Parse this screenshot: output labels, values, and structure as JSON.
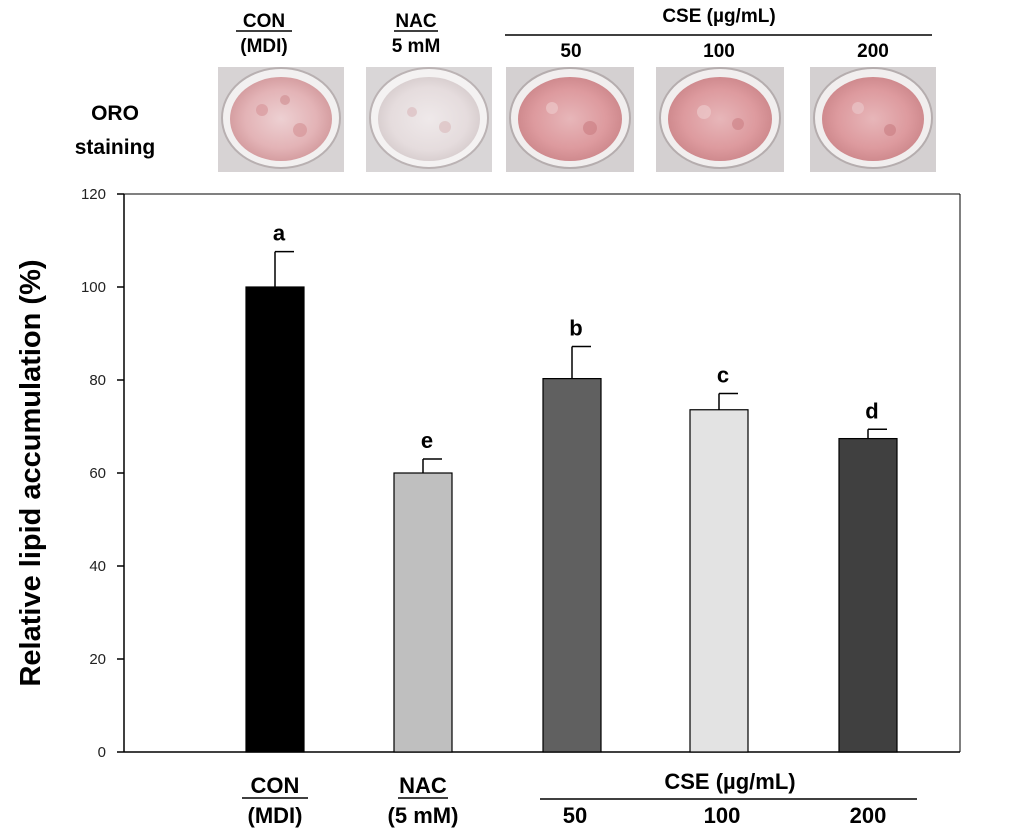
{
  "panel_header": {
    "con_line1": "CON",
    "con_line2": "(MDI)",
    "nac_line1": "NAC",
    "nac_line2": "5 mM",
    "cse_title": "CSE  (µg/mL)",
    "cse_doses": [
      "50",
      "100",
      "200"
    ]
  },
  "staining_label": {
    "line1": "ORO",
    "line2": "staining"
  },
  "x_axis_labels": {
    "con_line1": "CON",
    "con_line2": "(MDI)",
    "nac_line1": "NAC",
    "nac_line2": "(5 mM)",
    "cse_title": "CSE (µg/mL)",
    "cse_doses": [
      "50",
      "100",
      "200"
    ]
  },
  "colors": {
    "dish_stain": "#d98b8f",
    "dish_pale": "#e9e6e6",
    "bar_colors": [
      "#000000",
      "#bfbfbf",
      "#606060",
      "#e3e3e3",
      "#404040"
    ]
  },
  "chart_data": {
    "type": "bar",
    "categories": [
      "CON (MDI)",
      "NAC (5 mM)",
      "CSE 50",
      "CSE 100",
      "CSE 200"
    ],
    "values": [
      100,
      60,
      80.3,
      73.6,
      67.4
    ],
    "error_upper": [
      7.6,
      3.0,
      6.9,
      3.5,
      2.0
    ],
    "significance": [
      "a",
      "e",
      "b",
      "c",
      "d"
    ],
    "ylabel": "Relative lipid accumulation (%)",
    "xlabel": "",
    "ylim": [
      0,
      120
    ],
    "yticks": [
      0,
      20,
      40,
      60,
      80,
      100,
      120
    ],
    "grid": false
  }
}
